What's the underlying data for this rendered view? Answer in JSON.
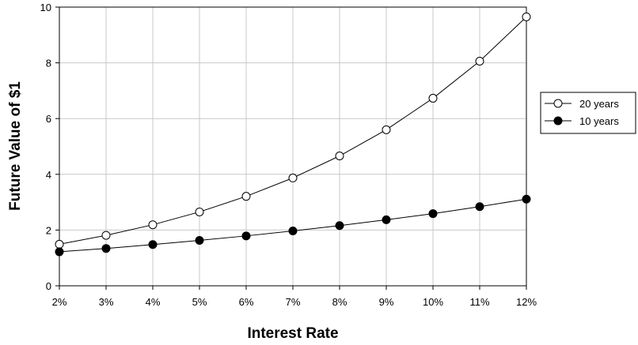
{
  "chart_data": {
    "type": "line",
    "title": "",
    "xlabel": "Interest Rate",
    "ylabel": "Future Value of $1",
    "categories": [
      "2%",
      "3%",
      "4%",
      "5%",
      "6%",
      "7%",
      "8%",
      "9%",
      "10%",
      "11%",
      "12%"
    ],
    "yticks": [
      "0",
      "2",
      "4",
      "6",
      "8",
      "10"
    ],
    "ylim": [
      0,
      10
    ],
    "grid": true,
    "legend_position": "right",
    "series": [
      {
        "name": "20 years",
        "marker": "open-circle",
        "values": [
          1.49,
          1.81,
          2.19,
          2.65,
          3.21,
          3.87,
          4.66,
          5.6,
          6.73,
          8.06,
          9.65
        ]
      },
      {
        "name": "10 years",
        "marker": "filled-circle",
        "values": [
          1.22,
          1.34,
          1.48,
          1.63,
          1.79,
          1.97,
          2.16,
          2.37,
          2.59,
          2.84,
          3.11
        ]
      }
    ]
  }
}
